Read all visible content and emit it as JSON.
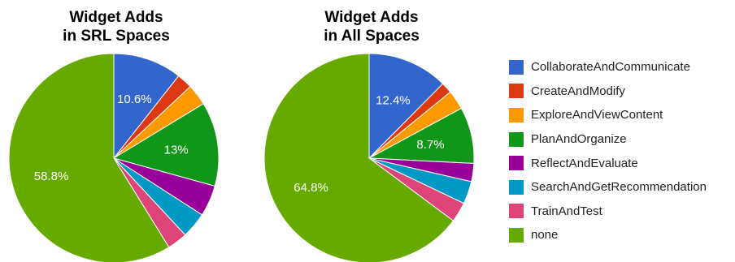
{
  "chart_data": [
    {
      "type": "pie",
      "title_lines": [
        "Widget Adds",
        "in SRL Spaces"
      ],
      "categories": [
        "CollaborateAndCommunicate",
        "CreateAndModify",
        "ExploreAndViewContent",
        "PlanAndOrganize",
        "ReflectAndEvaluate",
        "SearchAndGetRecommendation",
        "TrainAndTest",
        "none"
      ],
      "values": [
        10.6,
        2.4,
        3.3,
        13.0,
        4.8,
        4.0,
        3.1,
        58.8
      ],
      "labels": [
        "10.6%",
        "",
        "",
        "13%",
        "",
        "",
        "",
        "58.8%"
      ],
      "legend": "right"
    },
    {
      "type": "pie",
      "title_lines": [
        "Widget Adds",
        "in All Spaces"
      ],
      "categories": [
        "CollaborateAndCommunicate",
        "CreateAndModify",
        "ExploreAndViewContent",
        "PlanAndOrganize",
        "ReflectAndEvaluate",
        "SearchAndGetRecommendation",
        "TrainAndTest",
        "none"
      ],
      "values": [
        12.4,
        1.7,
        3.0,
        8.7,
        2.8,
        3.5,
        3.1,
        64.8
      ],
      "labels": [
        "12.4%",
        "",
        "",
        "8.7%",
        "",
        "",
        "",
        "64.8%"
      ],
      "legend": "right"
    }
  ],
  "legend": {
    "items": [
      {
        "label": "CollaborateAndCommunicate",
        "color": "#3366cc"
      },
      {
        "label": "CreateAndModify",
        "color": "#dc3912"
      },
      {
        "label": "ExploreAndViewContent",
        "color": "#ff9900"
      },
      {
        "label": "PlanAndOrganize",
        "color": "#109618"
      },
      {
        "label": "ReflectAndEvaluate",
        "color": "#990099"
      },
      {
        "label": "SearchAndGetRecommendation",
        "color": "#0099c6"
      },
      {
        "label": "TrainAndTest",
        "color": "#dd4477"
      },
      {
        "label": "none",
        "color": "#66aa00"
      }
    ]
  }
}
